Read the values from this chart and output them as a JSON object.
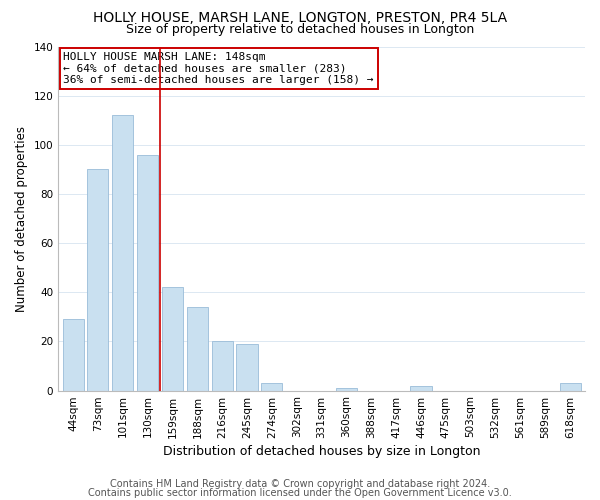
{
  "title": "HOLLY HOUSE, MARSH LANE, LONGTON, PRESTON, PR4 5LA",
  "subtitle": "Size of property relative to detached houses in Longton",
  "xlabel": "Distribution of detached houses by size in Longton",
  "ylabel": "Number of detached properties",
  "categories": [
    "44sqm",
    "73sqm",
    "101sqm",
    "130sqm",
    "159sqm",
    "188sqm",
    "216sqm",
    "245sqm",
    "274sqm",
    "302sqm",
    "331sqm",
    "360sqm",
    "388sqm",
    "417sqm",
    "446sqm",
    "475sqm",
    "503sqm",
    "532sqm",
    "561sqm",
    "589sqm",
    "618sqm"
  ],
  "values": [
    29,
    90,
    112,
    96,
    42,
    34,
    20,
    19,
    3,
    0,
    0,
    1,
    0,
    0,
    2,
    0,
    0,
    0,
    0,
    0,
    3
  ],
  "bar_color": "#c9e0f0",
  "bar_edge_color": "#9abcd8",
  "vline_color": "#cc0000",
  "vline_x_index": 4,
  "annotation_text": "HOLLY HOUSE MARSH LANE: 148sqm\n← 64% of detached houses are smaller (283)\n36% of semi-detached houses are larger (158) →",
  "annotation_box_color": "white",
  "annotation_box_edge_color": "#cc0000",
  "ylim": [
    0,
    140
  ],
  "yticks": [
    0,
    20,
    40,
    60,
    80,
    100,
    120,
    140
  ],
  "footer_line1": "Contains HM Land Registry data © Crown copyright and database right 2024.",
  "footer_line2": "Contains public sector information licensed under the Open Government Licence v3.0.",
  "title_fontsize": 10,
  "subtitle_fontsize": 9,
  "xlabel_fontsize": 9,
  "ylabel_fontsize": 8.5,
  "tick_fontsize": 7.5,
  "footer_fontsize": 7,
  "annotation_fontsize": 8,
  "background_color": "#ffffff",
  "grid_color": "#dce8f2"
}
